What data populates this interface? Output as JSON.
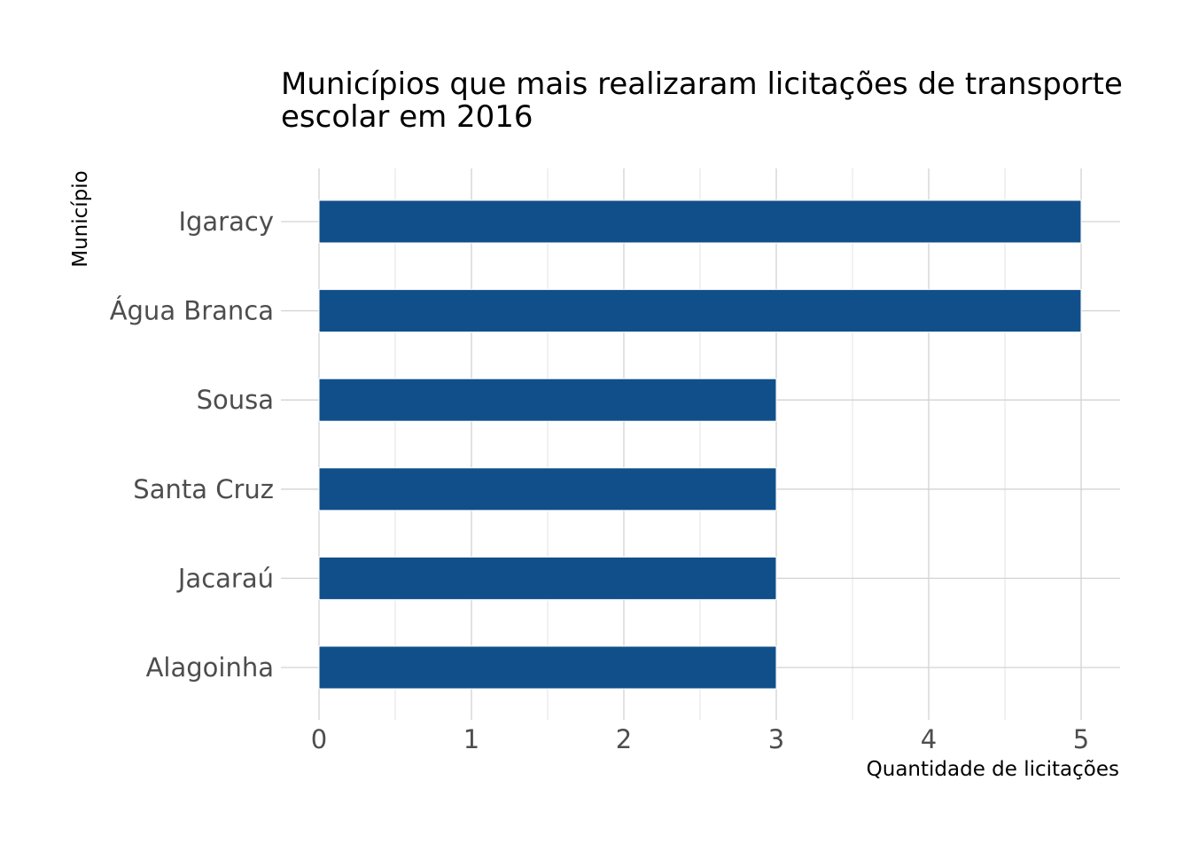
{
  "chart_data": {
    "type": "bar",
    "orientation": "horizontal",
    "title": "Municípios que mais realizaram licitações de transporte escolar em 2016",
    "title_lines": [
      "Municípios que mais realizaram licitações de transporte",
      "escolar em 2016"
    ],
    "xlabel": "Quantidade de licitações",
    "ylabel": "Município",
    "categories": [
      "Igaracy",
      "Água Branca",
      "Sousa",
      "Santa Cruz",
      "Jacaraú",
      "Alagoinha"
    ],
    "values": [
      5,
      5,
      3,
      3,
      3,
      3
    ],
    "xlim": [
      0,
      5.25
    ],
    "x_ticks": [
      "0",
      "1",
      "2",
      "3",
      "4",
      "5"
    ],
    "grid": true,
    "legend": "none",
    "colors": {
      "bar": "#114f8a",
      "grid": "#d3d3d3",
      "tick_text": "#4d4d4d",
      "text": "#000000"
    }
  }
}
